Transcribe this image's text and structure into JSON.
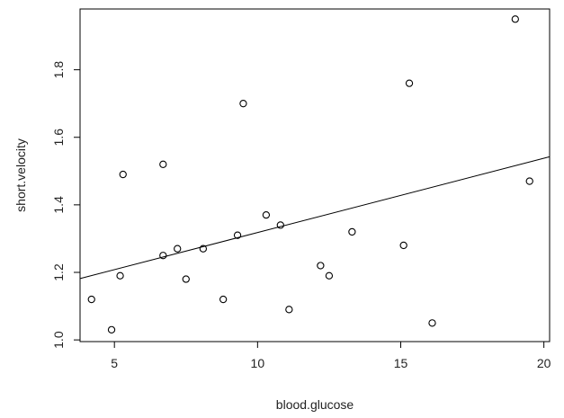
{
  "chart_data": {
    "type": "scatter",
    "title": "",
    "xlabel": "blood.glucose",
    "ylabel": "short.velocity",
    "xlim": [
      3.8,
      20.2
    ],
    "ylim": [
      0.995,
      1.98
    ],
    "x_ticks": [
      5,
      10,
      15,
      20
    ],
    "y_ticks": [
      1.0,
      1.2,
      1.4,
      1.6,
      1.8
    ],
    "x_tick_labels": [
      "5",
      "10",
      "15",
      "20"
    ],
    "y_tick_labels": [
      "1.0",
      "1.2",
      "1.4",
      "1.6",
      "1.8"
    ],
    "grid": false,
    "legend": "none",
    "points": [
      {
        "x": 4.2,
        "y": 1.12
      },
      {
        "x": 4.9,
        "y": 1.03
      },
      {
        "x": 5.2,
        "y": 1.19
      },
      {
        "x": 5.3,
        "y": 1.49
      },
      {
        "x": 6.7,
        "y": 1.52
      },
      {
        "x": 6.7,
        "y": 1.25
      },
      {
        "x": 7.2,
        "y": 1.27
      },
      {
        "x": 7.5,
        "y": 1.18
      },
      {
        "x": 8.1,
        "y": 1.27
      },
      {
        "x": 8.8,
        "y": 1.12
      },
      {
        "x": 9.3,
        "y": 1.31
      },
      {
        "x": 9.5,
        "y": 1.7
      },
      {
        "x": 10.3,
        "y": 1.37
      },
      {
        "x": 10.8,
        "y": 1.34
      },
      {
        "x": 11.1,
        "y": 1.09
      },
      {
        "x": 12.2,
        "y": 1.22
      },
      {
        "x": 12.5,
        "y": 1.19
      },
      {
        "x": 13.3,
        "y": 1.32
      },
      {
        "x": 15.1,
        "y": 1.28
      },
      {
        "x": 15.3,
        "y": 1.76
      },
      {
        "x": 16.1,
        "y": 1.05
      },
      {
        "x": 19.0,
        "y": 1.95
      },
      {
        "x": 19.5,
        "y": 1.47
      }
    ],
    "regression_line": {
      "intercept": 1.098,
      "slope": 0.022
    },
    "colors": {
      "points": "#000000",
      "line": "#000000",
      "axes": "#000000"
    }
  }
}
